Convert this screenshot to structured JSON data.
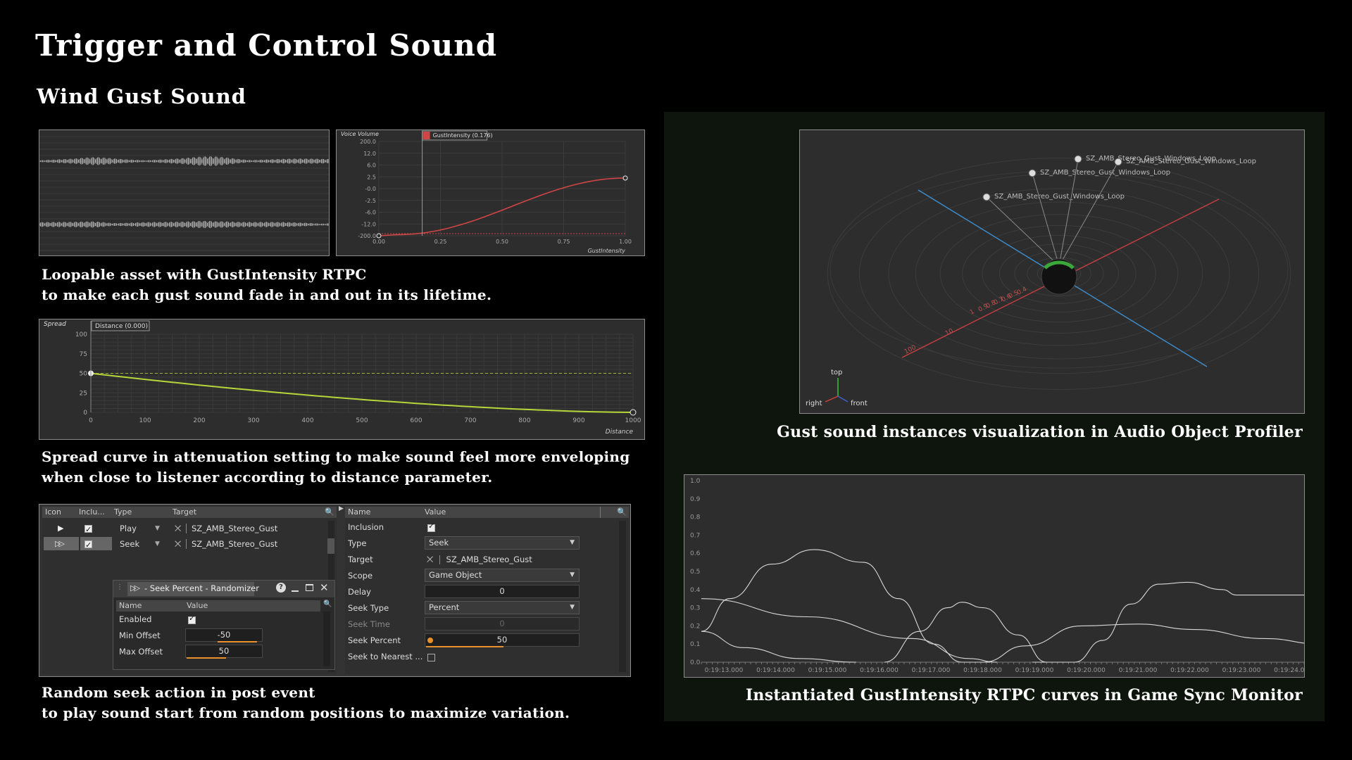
{
  "title": "Trigger and Control Sound",
  "subtitle": "Wind Gust Sound",
  "captions": {
    "loop_line1": "Loopable asset with GustIntensity RTPC",
    "loop_line2": "to make each gust sound fade in and out in its lifetime.",
    "spread_line1": "Spread curve in attenuation setting to make sound feel more enveloping",
    "spread_line2": "when close to listener according to distance parameter.",
    "seek_line1": "Random seek action in post event",
    "seek_line2": "to play sound start from random positions to maximize variation.",
    "profiler": "Gust sound instances visualization in Audio Object Profiler",
    "monitor": "Instantiated GustIntensity RTPC curves in Game Sync Monitor"
  },
  "rtpc_graph": {
    "y_title": "Voice Volume",
    "legend": "GustIntensity (0.176)",
    "y_ticks": [
      "200.0",
      "12.0",
      "6.0",
      "2.5",
      "-0.0",
      "-2.5",
      "-6.0",
      "-12.0",
      "-200.0"
    ],
    "x_ticks": [
      "0.00",
      "0.25",
      "0.50",
      "0.75",
      "1.00"
    ],
    "x_title": "GustIntensity",
    "cursor_value": 0.176
  },
  "spread_graph": {
    "y_title": "Spread",
    "legend": "Distance (0.000)",
    "y_ticks": [
      "100",
      "75",
      "50",
      "25",
      "0"
    ],
    "x_ticks": [
      "0",
      "100",
      "200",
      "300",
      "400",
      "500",
      "600",
      "700",
      "800",
      "900",
      "1000"
    ],
    "x_title": "Distance"
  },
  "actions_table": {
    "headers": [
      "Icon",
      "Inclu...",
      "Type",
      "Target"
    ],
    "rows": [
      {
        "icon": "play-icon",
        "included": true,
        "type": "Play",
        "target": "SZ_AMB_Stereo_Gust"
      },
      {
        "icon": "seek-icon",
        "included": true,
        "type": "Seek",
        "target": "SZ_AMB_Stereo_Gust"
      }
    ]
  },
  "randomizer": {
    "title": "- Seek Percent - Randomizer",
    "headers": [
      "Name",
      "Value"
    ],
    "enabled_label": "Enabled",
    "enabled": true,
    "min_label": "Min Offset",
    "min_value": "-50",
    "max_label": "Max Offset",
    "max_value": "50"
  },
  "properties": {
    "headers": [
      "Name",
      "Value"
    ],
    "inclusion_label": "Inclusion",
    "inclusion": true,
    "type_label": "Type",
    "type_value": "Seek",
    "target_label": "Target",
    "target_value": "SZ_AMB_Stereo_Gust",
    "scope_label": "Scope",
    "scope_value": "Game Object",
    "delay_label": "Delay",
    "delay_value": "0",
    "seek_type_label": "Seek Type",
    "seek_type_value": "Percent",
    "seek_time_label": "Seek Time",
    "seek_time_value": "0",
    "seek_percent_label": "Seek Percent",
    "seek_percent_value": "50",
    "seek_nearest_label": "Seek to Nearest ...",
    "seek_nearest": false
  },
  "profiler_view": {
    "instances": [
      "SZ_AMB_Stereo_Gust_Windows_Loop",
      "SZ_AMB_Stereo_Gust_Windows_Loop",
      "SZ_AMB_Stereo_Gust_Windows_Loop",
      "SZ_AMB_Stereo_Gust_Windows_Loop"
    ],
    "axis_labels": [
      "100",
      "10",
      "1",
      "0.9",
      "0.8",
      "0.7",
      "0.6",
      "0.5",
      "0.4"
    ],
    "gizmo": {
      "top": "top",
      "right": "right",
      "front": "front"
    }
  },
  "monitor_graph": {
    "y_ticks": [
      "1.0",
      "0.9",
      "0.8",
      "0.7",
      "0.6",
      "0.5",
      "0.4",
      "0.3",
      "0.2",
      "0.1",
      "0.0"
    ],
    "x_ticks": [
      "0:19:13.000",
      "0:19:14.000",
      "0:19:15.000",
      "0:19:16.000",
      "0:19:17.000",
      "0:19:18.000",
      "0:19:19.000",
      "0:19:20.000",
      "0:19:21.000",
      "0:19:22.000",
      "0:19:23.000",
      "0:19:24.000"
    ]
  },
  "colors": {
    "background": "#000000",
    "panel": "#2d2d2d",
    "rtpc_curve": "#d04545",
    "spread_curve": "#b6d63a",
    "accent": "#e8902a",
    "profiler_red_axis": "#c84040",
    "profiler_blue_axis": "#3d8fd0"
  }
}
